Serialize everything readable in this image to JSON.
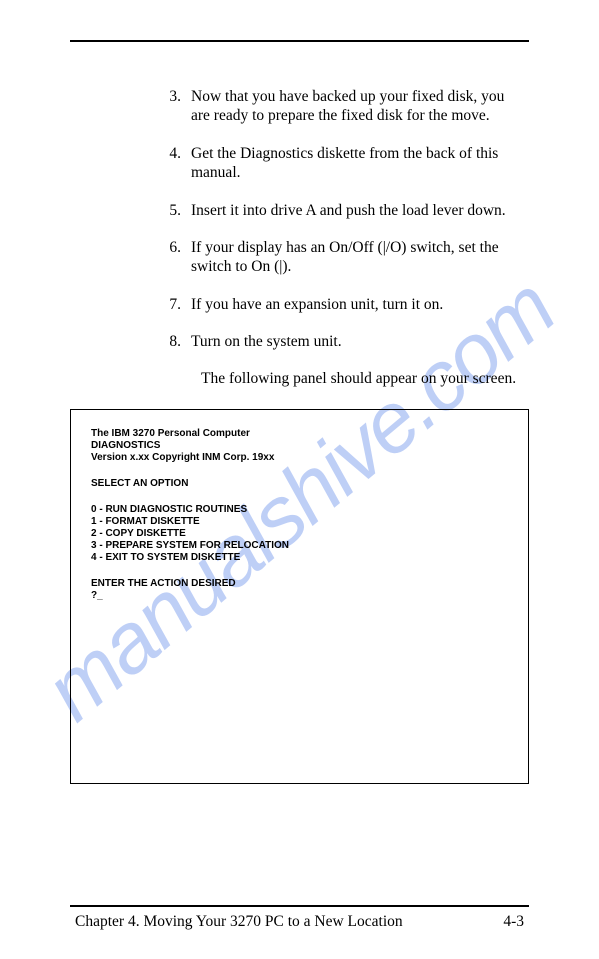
{
  "watermark": "manualshive.com",
  "items": [
    {
      "n": "3.",
      "t": "Now that you have backed up your fixed disk, you are ready to prepare the fixed disk for the move."
    },
    {
      "n": "4.",
      "t": "Get the Diagnostics diskette from the back of this manual."
    },
    {
      "n": "5.",
      "t": "Insert it into drive A and push the load lever down."
    },
    {
      "n": "6.",
      "t": "If your display has an On/Off (|/O) switch, set the switch to On (|)."
    },
    {
      "n": "7.",
      "t": "If you have an expansion unit, turn it on."
    },
    {
      "n": "8.",
      "t": "Turn on the system unit."
    }
  ],
  "follow": "The following panel should appear on your screen.",
  "panel": {
    "header": "The IBM 3270 Personal Computer\nDIAGNOSTICS\nVersion x.xx Copyright INM Corp. 19xx",
    "select": "SELECT AN OPTION",
    "options": "0 - RUN DIAGNOSTIC ROUTINES\n1 - FORMAT DISKETTE\n2 - COPY DISKETTE\n3 - PREPARE SYSTEM FOR RELOCATION\n4 - EXIT TO SYSTEM DISKETTE",
    "prompt": "ENTER THE ACTION DESIRED\n?_"
  },
  "footer": {
    "chapter": "Chapter 4. Moving Your 3270 PC to a New Location",
    "page": "4-3"
  }
}
